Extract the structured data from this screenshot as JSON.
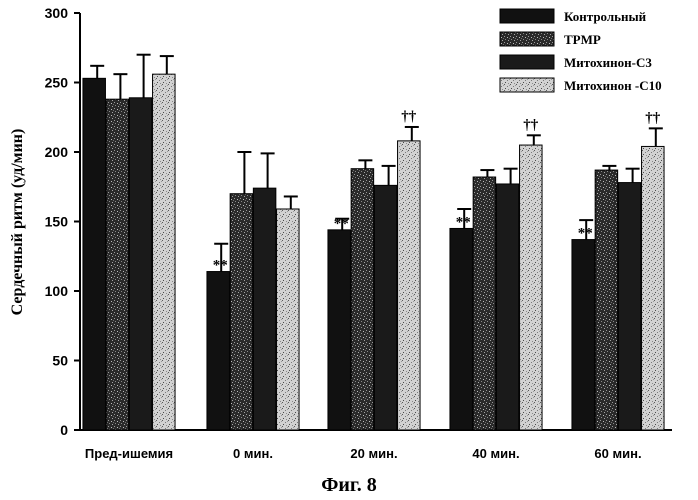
{
  "figure": {
    "caption": "Фиг. 8"
  },
  "chart_data": {
    "type": "bar",
    "title": "",
    "xlabel": "",
    "ylabel": "Сердечный ритм (уд/мин)",
    "ylim": [
      0,
      300
    ],
    "yticks": [
      0,
      50,
      100,
      150,
      200,
      250,
      300
    ],
    "grid": false,
    "legend_position": "top-right",
    "categories": [
      "Пред-ишемия",
      "0 мин.",
      "20 мин.",
      "40 мин.",
      "60 мин."
    ],
    "series": [
      {
        "name": "Контрольный",
        "values": [
          253,
          114,
          144,
          145,
          137
        ],
        "errors": [
          9,
          20,
          8,
          14,
          14
        ],
        "color": "#111111",
        "pattern": "solid"
      },
      {
        "name": "TPMP",
        "values": [
          238,
          170,
          188,
          182,
          187
        ],
        "errors": [
          18,
          30,
          6,
          5,
          3
        ],
        "color": "#3a3a3a",
        "pattern": "dense-speckle"
      },
      {
        "name": "Митохинон-C3",
        "values": [
          239,
          174,
          176,
          177,
          178
        ],
        "errors": [
          31,
          25,
          14,
          11,
          10
        ],
        "color": "#1a1a1a",
        "pattern": "solid"
      },
      {
        "name": "Митохинон -C10",
        "values": [
          256,
          159,
          208,
          205,
          204
        ],
        "errors": [
          13,
          9,
          10,
          7,
          13
        ],
        "color": "#cfcfcf",
        "pattern": "light-speckle"
      }
    ],
    "annotations": [
      {
        "category": "0 мин.",
        "series": "Контрольный",
        "text": "**"
      },
      {
        "category": "20 мин.",
        "series": "Контрольный",
        "text": "**"
      },
      {
        "category": "40 мин.",
        "series": "Контрольный",
        "text": "**"
      },
      {
        "category": "60 мин.",
        "series": "Контрольный",
        "text": "**"
      },
      {
        "category": "20 мин.",
        "series": "Митохинон -C10",
        "text": "††"
      },
      {
        "category": "40 мин.",
        "series": "Митохинон -C10",
        "text": "††"
      },
      {
        "category": "60 мин.",
        "series": "Митохинон -C10",
        "text": "††"
      }
    ]
  }
}
